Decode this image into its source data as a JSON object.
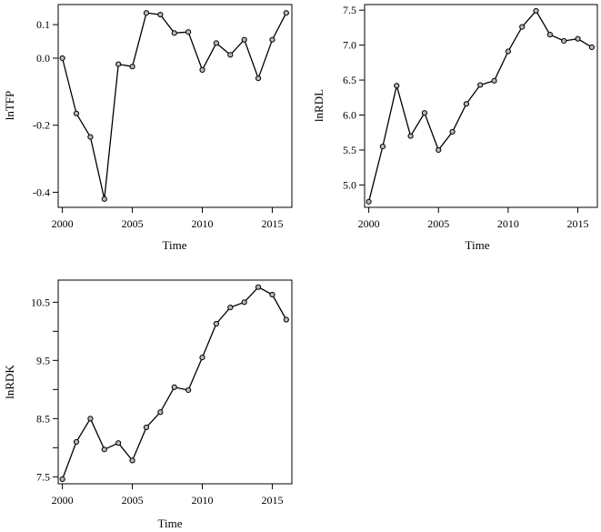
{
  "chart_data": [
    {
      "type": "line",
      "xlabel": "Time",
      "ylabel": "lnTFP",
      "x": [
        2000,
        2001,
        2002,
        2003,
        2004,
        2005,
        2006,
        2007,
        2008,
        2009,
        2010,
        2011,
        2012,
        2013,
        2014,
        2015,
        2016
      ],
      "series": [
        {
          "values": [
            0.0,
            -0.165,
            -0.235,
            -0.42,
            -0.018,
            -0.025,
            0.135,
            0.13,
            0.075,
            0.078,
            -0.035,
            0.045,
            0.01,
            0.055,
            -0.06,
            0.055,
            0.135
          ]
        }
      ],
      "xticks": [
        2000,
        2005,
        2010,
        2015
      ],
      "xtick_labels": [
        "2000",
        "2005",
        "2010",
        "2015"
      ],
      "yticks": [
        0.1,
        0.0,
        -0.2,
        -0.4
      ],
      "ytick_labels": [
        "0.1",
        "0.0",
        "-0.2",
        "-0.4"
      ],
      "ylim": [
        -0.445,
        0.16
      ],
      "xlim": [
        1999.7,
        2016.4
      ],
      "grid": false
    },
    {
      "type": "line",
      "xlabel": "Time",
      "ylabel": "lnRDL",
      "x": [
        2000,
        2001,
        2002,
        2003,
        2004,
        2005,
        2006,
        2007,
        2008,
        2009,
        2010,
        2011,
        2012,
        2013,
        2014,
        2015,
        2016
      ],
      "series": [
        {
          "values": [
            4.76,
            5.55,
            6.42,
            5.7,
            6.03,
            5.5,
            5.76,
            6.16,
            6.43,
            6.49,
            6.91,
            7.26,
            7.49,
            7.15,
            7.06,
            7.09,
            6.97
          ]
        }
      ],
      "xticks": [
        2000,
        2005,
        2010,
        2015
      ],
      "xtick_labels": [
        "2000",
        "2005",
        "2010",
        "2015"
      ],
      "yticks": [
        5.0,
        5.5,
        6.0,
        6.5,
        7.0,
        7.5
      ],
      "ytick_labels": [
        "5.0",
        "5.5",
        "6.0",
        "6.5",
        "7.0",
        "7.5"
      ],
      "ylim": [
        4.68,
        7.58
      ],
      "xlim": [
        1999.7,
        2016.4
      ],
      "grid": false
    },
    {
      "type": "line",
      "xlabel": "Time",
      "ylabel": "lnRDK",
      "x": [
        2000,
        2001,
        2002,
        2003,
        2004,
        2005,
        2006,
        2007,
        2008,
        2009,
        2010,
        2011,
        2012,
        2013,
        2014,
        2015,
        2016
      ],
      "series": [
        {
          "values": [
            7.46,
            8.1,
            8.5,
            7.97,
            8.08,
            7.78,
            8.35,
            8.61,
            9.04,
            8.99,
            9.55,
            10.13,
            10.41,
            10.5,
            10.76,
            10.63,
            10.2
          ]
        }
      ],
      "xticks": [
        2000,
        2005,
        2010,
        2015
      ],
      "xtick_labels": [
        "2000",
        "2005",
        "2010",
        "2015"
      ],
      "yticks": [
        7.5,
        8.5,
        9.5,
        10.5
      ],
      "ytick_labels": [
        "7.5",
        "8.5",
        "9.5",
        "10.5"
      ],
      "minor_yticks": [
        8.0,
        9.0,
        10.0
      ],
      "ylim": [
        7.38,
        10.88
      ],
      "xlim": [
        1999.7,
        2016.4
      ],
      "grid": false
    }
  ]
}
